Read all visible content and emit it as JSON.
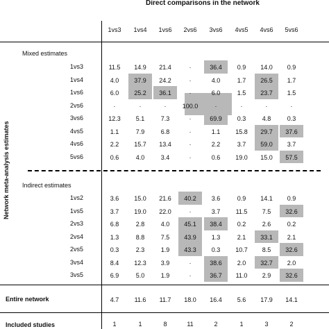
{
  "header": {
    "title": "Direct comparisons in the network"
  },
  "columns": [
    "1vs3",
    "1vs4",
    "1vs6",
    "2vs6",
    "3vs6",
    "4vs5",
    "4vs6",
    "5vs6"
  ],
  "side_label": "Network meta-analysis estimates",
  "mixed": {
    "title": "Mixed estimates",
    "rows": [
      {
        "label": "1vs3",
        "values": [
          "11.5",
          "14.9",
          "21.4",
          "·",
          "36.4",
          "0.9",
          "14.0",
          "0.9"
        ]
      },
      {
        "label": "1vs4",
        "values": [
          "4.0",
          "37.9",
          "24.2",
          "·",
          "4.0",
          "1.7",
          "26.5",
          "1.7"
        ]
      },
      {
        "label": "1vs6",
        "values": [
          "6.0",
          "25.2",
          "36.1",
          "·",
          "6.0",
          "1.5",
          "23.7",
          "1.5"
        ]
      },
      {
        "label": "2vs6",
        "values": [
          "·",
          "·",
          "·",
          "100.0",
          "·",
          "·",
          "·",
          "·"
        ]
      },
      {
        "label": "3vs6",
        "values": [
          "12.3",
          "5.1",
          "7.3",
          "·",
          "69.9",
          "0.3",
          "4.8",
          "0.3"
        ]
      },
      {
        "label": "4vs5",
        "values": [
          "1.1",
          "7.9",
          "6.8",
          "·",
          "1.1",
          "15.8",
          "29.7",
          "37.6"
        ]
      },
      {
        "label": "4vs6",
        "values": [
          "2.2",
          "15.7",
          "13.4",
          "·",
          "2.2",
          "3.7",
          "59.0",
          "3.7"
        ]
      },
      {
        "label": "5vs6",
        "values": [
          "0.6",
          "4.0",
          "3.4",
          "·",
          "0.6",
          "19.0",
          "15.0",
          "57.5"
        ]
      }
    ]
  },
  "indirect": {
    "title": "Indirect estimates",
    "rows": [
      {
        "label": "1vs2",
        "values": [
          "3.6",
          "15.0",
          "21.6",
          "40.2",
          "3.6",
          "0.9",
          "14.1",
          "0.9"
        ]
      },
      {
        "label": "1vs5",
        "values": [
          "3.7",
          "19.0",
          "22.0",
          "·",
          "3.7",
          "11.5",
          "7.5",
          "32.6"
        ]
      },
      {
        "label": "2vs3",
        "values": [
          "6.8",
          "2.8",
          "4.0",
          "45.1",
          "38.4",
          "0.2",
          "2.6",
          "0.2"
        ]
      },
      {
        "label": "2vs4",
        "values": [
          "1.3",
          "8.8",
          "7.5",
          "43.9",
          "1.3",
          "2.1",
          "33.1",
          "2.1"
        ]
      },
      {
        "label": "2vs5",
        "values": [
          "0.3",
          "2.3",
          "1.9",
          "43.3",
          "0.3",
          "10.7",
          "8.5",
          "32.6"
        ]
      },
      {
        "label": "3vs4",
        "values": [
          "8.4",
          "12.3",
          "3.9",
          "·",
          "38.6",
          "2.0",
          "32.7",
          "2.0"
        ]
      },
      {
        "label": "3vs5",
        "values": [
          "6.9",
          "5.0",
          "1.9",
          "·",
          "36.7",
          "11.0",
          "2.9",
          "32.6"
        ]
      }
    ]
  },
  "entire_network": {
    "label": "Entire network",
    "values": [
      "4.7",
      "11.6",
      "11.7",
      "18.0",
      "16.4",
      "5.6",
      "17.9",
      "14.1"
    ]
  },
  "included_studies": {
    "label": "Included studies",
    "values": [
      "1",
      "1",
      "8",
      "11",
      "2",
      "1",
      "3",
      "2"
    ]
  },
  "shaded_cells": [
    {
      "section": "mixed",
      "row": 0,
      "col": 4
    },
    {
      "section": "mixed",
      "row": 1,
      "col": 1
    },
    {
      "section": "mixed",
      "row": 1,
      "col": 6
    },
    {
      "section": "mixed",
      "row": 2,
      "col": 1
    },
    {
      "section": "mixed",
      "row": 2,
      "col": 2
    },
    {
      "section": "mixed",
      "row": 2,
      "col": 6
    },
    {
      "section": "mixed",
      "row": 3,
      "col": 3
    },
    {
      "section": "mixed",
      "row": 4,
      "col": 4
    },
    {
      "section": "mixed",
      "row": 5,
      "col": 6
    },
    {
      "section": "mixed",
      "row": 5,
      "col": 7
    },
    {
      "section": "mixed",
      "row": 6,
      "col": 6
    },
    {
      "section": "mixed",
      "row": 7,
      "col": 7
    },
    {
      "section": "indirect",
      "row": 0,
      "col": 3
    },
    {
      "section": "indirect",
      "row": 1,
      "col": 7
    },
    {
      "section": "indirect",
      "row": 2,
      "col": 3
    },
    {
      "section": "indirect",
      "row": 2,
      "col": 4
    },
    {
      "section": "indirect",
      "row": 3,
      "col": 3
    },
    {
      "section": "indirect",
      "row": 3,
      "col": 6
    },
    {
      "section": "indirect",
      "row": 4,
      "col": 3
    },
    {
      "section": "indirect",
      "row": 4,
      "col": 7
    },
    {
      "section": "indirect",
      "row": 5,
      "col": 4
    },
    {
      "section": "indirect",
      "row": 5,
      "col": 6
    },
    {
      "section": "indirect",
      "row": 6,
      "col": 4
    },
    {
      "section": "indirect",
      "row": 6,
      "col": 7
    }
  ]
}
